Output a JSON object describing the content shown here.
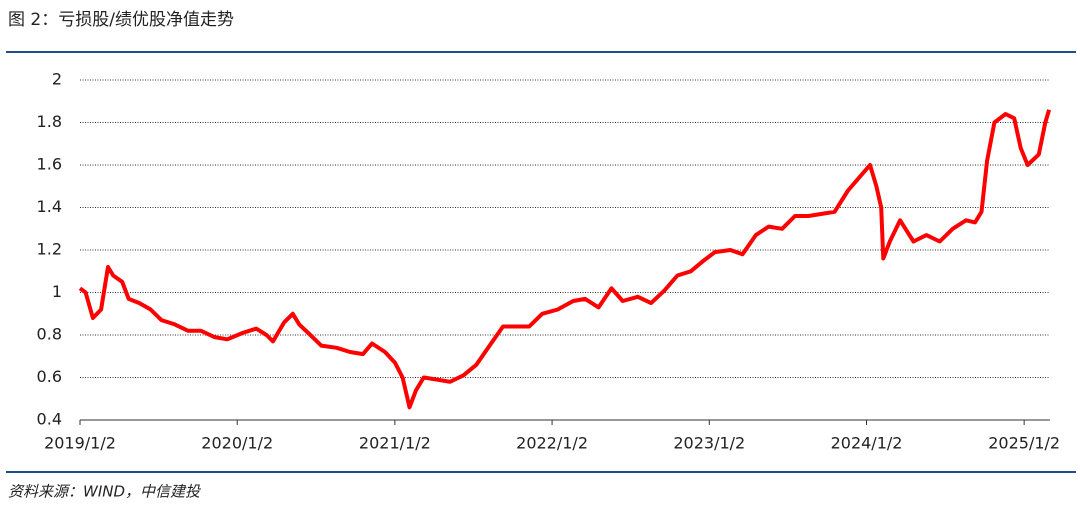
{
  "chart_data": {
    "type": "line",
    "title": "图 2：亏损股/绩优股净值走势",
    "source": "资料来源：WIND，中信建投",
    "color": "#ff0000",
    "grid": true,
    "x": [
      "2019/1/2",
      "2019/1/15",
      "2019/2/1",
      "2019/2/20",
      "2019/3/8",
      "2019/3/20",
      "2019/4/10",
      "2019/4/25",
      "2019/5/20",
      "2019/6/15",
      "2019/7/10",
      "2019/8/10",
      "2019/9/10",
      "2019/10/10",
      "2019/11/10",
      "2019/12/10",
      "2020/1/15",
      "2020/2/15",
      "2020/3/10",
      "2020/3/25",
      "2020/4/20",
      "2020/5/10",
      "2020/5/25",
      "2020/6/20",
      "2020/7/15",
      "2020/8/20",
      "2020/9/20",
      "2020/10/20",
      "2020/11/10",
      "2020/12/10",
      "2021/1/2",
      "2021/1/20",
      "2021/2/5",
      "2021/2/20",
      "2021/3/10",
      "2021/4/10",
      "2021/5/10",
      "2021/6/10",
      "2021/7/10",
      "2021/8/10",
      "2021/9/10",
      "2021/10/10",
      "2021/11/10",
      "2021/12/10",
      "2022/1/15",
      "2022/2/20",
      "2022/3/20",
      "2022/4/20",
      "2022/5/20",
      "2022/6/15",
      "2022/7/20",
      "2022/8/20",
      "2022/9/20",
      "2022/10/20",
      "2022/11/20",
      "2022/12/20",
      "2023/1/15",
      "2023/2/20",
      "2023/3/20",
      "2023/4/20",
      "2023/5/20",
      "2023/6/20",
      "2023/7/20",
      "2023/8/20",
      "2023/9/20",
      "2023/10/20",
      "2023/11/20",
      "2023/12/20",
      "2024/1/10",
      "2024/1/25",
      "2024/2/5",
      "2024/2/10",
      "2024/2/25",
      "2024/3/20",
      "2024/4/20",
      "2024/5/20",
      "2024/6/20",
      "2024/7/20",
      "2024/8/20",
      "2024/9/10",
      "2024/9/25",
      "2024/10/8",
      "2024/10/25",
      "2024/11/20",
      "2024/12/10",
      "2024/12/25",
      "2025/1/10",
      "2025/2/5",
      "2025/2/20",
      "2025/3/1"
    ],
    "values": [
      1.02,
      1.0,
      0.88,
      0.92,
      1.12,
      1.08,
      1.05,
      0.97,
      0.95,
      0.92,
      0.87,
      0.85,
      0.82,
      0.82,
      0.79,
      0.78,
      0.81,
      0.83,
      0.8,
      0.77,
      0.86,
      0.9,
      0.85,
      0.8,
      0.75,
      0.74,
      0.72,
      0.71,
      0.76,
      0.72,
      0.67,
      0.6,
      0.46,
      0.54,
      0.6,
      0.59,
      0.58,
      0.61,
      0.66,
      0.75,
      0.84,
      0.84,
      0.84,
      0.9,
      0.92,
      0.96,
      0.97,
      0.93,
      1.02,
      0.96,
      0.98,
      0.95,
      1.01,
      1.08,
      1.1,
      1.15,
      1.19,
      1.2,
      1.18,
      1.27,
      1.31,
      1.3,
      1.36,
      1.36,
      1.37,
      1.38,
      1.48,
      1.55,
      1.6,
      1.5,
      1.4,
      1.16,
      1.24,
      1.34,
      1.24,
      1.27,
      1.24,
      1.3,
      1.34,
      1.33,
      1.38,
      1.62,
      1.8,
      1.84,
      1.82,
      1.68,
      1.6,
      1.65,
      1.8,
      1.86
    ],
    "xlim": [
      "2019/1/2",
      "2025/3/3"
    ],
    "xticks": [
      "2019/1/2",
      "2020/1/2",
      "2021/1/2",
      "2022/1/2",
      "2023/1/2",
      "2024/1/2",
      "2025/1/2"
    ],
    "ylim": [
      0.4,
      2
    ],
    "yticks": [
      0.4,
      0.6,
      0.8,
      1,
      1.2,
      1.4,
      1.6,
      1.8,
      2
    ]
  }
}
